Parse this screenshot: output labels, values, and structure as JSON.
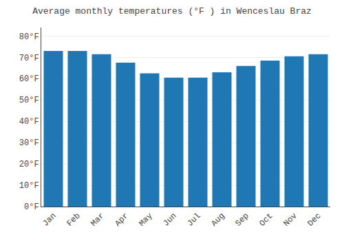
{
  "chart_data": {
    "type": "bar",
    "title": "Average monthly temperatures (°F ) in Wenceslau Braz",
    "categories": [
      "Jan",
      "Feb",
      "Mar",
      "Apr",
      "May",
      "Jun",
      "Jul",
      "Aug",
      "Sep",
      "Oct",
      "Nov",
      "Dec"
    ],
    "values": [
      73,
      73,
      71.5,
      67.5,
      62.5,
      60.5,
      60.5,
      63,
      66,
      68.5,
      70.5,
      71.5
    ],
    "ylim": [
      0,
      84
    ],
    "yticks": [
      {
        "value": 0,
        "label": "0°F"
      },
      {
        "value": 10,
        "label": "10°F"
      },
      {
        "value": 20,
        "label": "20°F"
      },
      {
        "value": 30,
        "label": "30°F"
      },
      {
        "value": 40,
        "label": "40°F"
      },
      {
        "value": 50,
        "label": "50°F"
      },
      {
        "value": 60,
        "label": "60°F"
      },
      {
        "value": 70,
        "label": "70°F"
      },
      {
        "value": 80,
        "label": "80°F"
      }
    ],
    "grid": true
  }
}
